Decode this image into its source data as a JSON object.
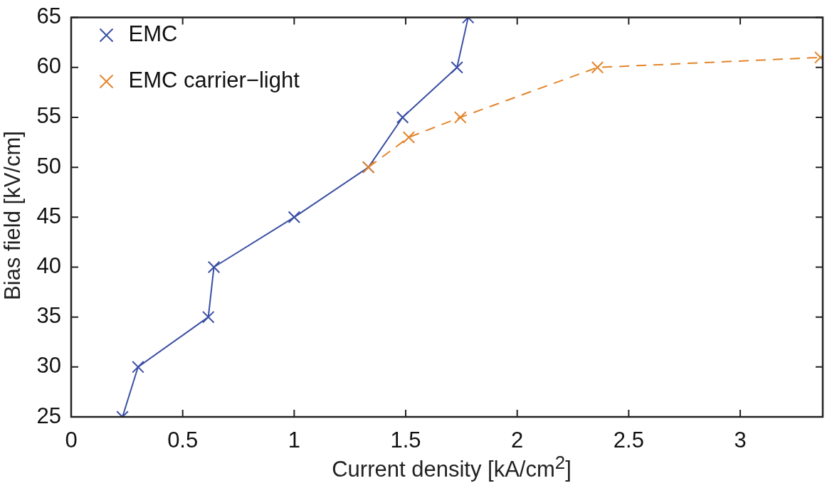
{
  "chart_data": {
    "type": "line",
    "xlabel": "Current density [kA/cm$^{2}$]",
    "ylabel": "Bias field [kV/cm]",
    "xlim": [
      0,
      3.37
    ],
    "xticks": [
      0,
      0.5,
      1,
      1.5,
      2,
      2.5,
      3
    ],
    "ylim": [
      25,
      65
    ],
    "yticks": [
      25,
      30,
      35,
      40,
      45,
      50,
      55,
      60,
      65
    ],
    "grid": false,
    "legend": "top left",
    "marker": "cross",
    "series": [
      {
        "name": "EMC",
        "color": "#3a4fa3",
        "line_style": "solid",
        "x": [
          0.23,
          0.3,
          0.615,
          0.64,
          1.0,
          1.333,
          1.486,
          1.73,
          1.78
        ],
        "values": [
          25,
          30,
          35,
          40,
          45,
          50,
          55,
          60,
          65
        ]
      },
      {
        "name": "EMC carrier−light",
        "color": "#e3852a",
        "line_style": "dashed",
        "x": [
          1.333,
          1.514,
          1.745,
          2.36,
          3.36
        ],
        "values": [
          50,
          53,
          55,
          60,
          61
        ]
      }
    ]
  }
}
